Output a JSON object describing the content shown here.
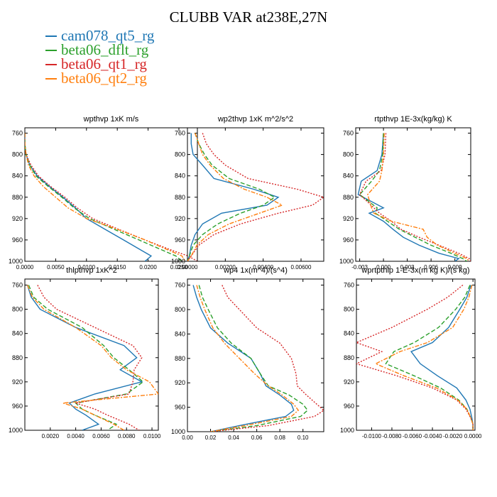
{
  "title": "CLUBB VAR at238E,27N",
  "legend": [
    {
      "label": "cam078_qt5_rg",
      "color": "#1f77b4"
    },
    {
      "label": "beta06_dflt_rg",
      "color": "#2ca02c"
    },
    {
      "label": "beta06_qt1_rg",
      "color": "#d62728"
    },
    {
      "label": "beta06_qt2_rg",
      "color": "#ff7f0e"
    }
  ],
  "chart_data": [
    {
      "type": "line",
      "title": "wpthvp  1xK m/s",
      "xlim": [
        0,
        0.028
      ],
      "ylim": [
        1000,
        750
      ],
      "xticks": [
        "0.0000",
        "0.0050",
        "0.0100",
        "0.0150",
        "0.0200",
        "0.0250"
      ],
      "xtick_values": [
        0,
        0.005,
        0.01,
        0.015,
        0.02,
        0.025
      ],
      "yticks": [
        "760",
        "800",
        "840",
        "880",
        "920",
        "960",
        "1000"
      ],
      "y": [
        760,
        780,
        800,
        820,
        840,
        860,
        880,
        900,
        920,
        940,
        960,
        980,
        990,
        1000
      ],
      "series": [
        {
          "values": [
            0.0,
            0.0,
            0.0002,
            0.0008,
            0.002,
            0.004,
            0.0062,
            0.0082,
            0.01,
            0.013,
            0.016,
            0.019,
            0.0205,
            0.0195
          ]
        },
        {
          "values": [
            0.0,
            0.0,
            0.0002,
            0.0008,
            0.0018,
            0.0038,
            0.006,
            0.008,
            0.0105,
            0.0145,
            0.0185,
            0.0225,
            0.0245,
            0.0255
          ]
        },
        {
          "values": [
            0.0,
            0.0,
            0.0002,
            0.001,
            0.0022,
            0.0042,
            0.0065,
            0.0085,
            0.011,
            0.0152,
            0.0195,
            0.024,
            0.0265,
            0.028
          ]
        },
        {
          "values": [
            0.0,
            0.0,
            0.0002,
            0.0006,
            0.0015,
            0.003,
            0.005,
            0.007,
            0.01,
            0.015,
            0.0195,
            0.0235,
            0.0255,
            0.026
          ]
        }
      ]
    },
    {
      "type": "line",
      "title": "wp2thvp  1xK m^2/s^2",
      "xlim": [
        0,
        0.0072
      ],
      "ylim": [
        1000,
        750
      ],
      "xticks": [
        "0.00000",
        "0.00200",
        "0.00400",
        "0.00600"
      ],
      "xtick_values": [
        0,
        0.002,
        0.004,
        0.006
      ],
      "yticks": [
        "760",
        "800",
        "840",
        "880",
        "920",
        "960",
        "1000"
      ],
      "y": [
        760,
        780,
        800,
        820,
        845,
        865,
        880,
        895,
        910,
        930,
        950,
        970,
        990,
        1000
      ],
      "series": [
        {
          "values": [
            0.0002,
            0.0002,
            0.0003,
            0.0008,
            0.0014,
            0.0035,
            0.0048,
            0.0042,
            0.0018,
            0.0008,
            0.0004,
            0.0002,
            0.0001,
            0.0
          ]
        },
        {
          "values": [
            0.0004,
            0.0006,
            0.0009,
            0.0013,
            0.0022,
            0.0038,
            0.0046,
            0.004,
            0.0028,
            0.0016,
            0.0008,
            0.0003,
            0.0001,
            0.0
          ]
        },
        {
          "values": [
            0.0008,
            0.001,
            0.0014,
            0.002,
            0.0032,
            0.0058,
            0.0072,
            0.0066,
            0.0048,
            0.0028,
            0.0014,
            0.0006,
            0.0002,
            0.0
          ]
        },
        {
          "values": [
            0.0004,
            0.0006,
            0.0008,
            0.0012,
            0.0019,
            0.003,
            0.0042,
            0.005,
            0.0038,
            0.0022,
            0.0011,
            0.0005,
            0.0002,
            0.0
          ]
        }
      ]
    },
    {
      "type": "line",
      "title": "rtpthvp  1E-3x(kg/kg) K",
      "xlim": [
        -0.0035,
        0.011
      ],
      "ylim": [
        1000,
        750
      ],
      "xticks": [
        "-0.003",
        "0.000",
        "0.003",
        "0.006",
        "0.009"
      ],
      "xtick_values": [
        -0.003,
        0,
        0.003,
        0.006,
        0.009
      ],
      "yticks": [
        "760",
        "800",
        "840",
        "880",
        "920",
        "960",
        "1000"
      ],
      "y": [
        760,
        800,
        830,
        850,
        875,
        900,
        910,
        925,
        940,
        955,
        970,
        985,
        995,
        1000
      ],
      "series": [
        {
          "values": [
            0.0,
            -0.0002,
            -0.0008,
            -0.0028,
            -0.0032,
            0.0,
            -0.0018,
            0.0,
            0.0012,
            0.0025,
            0.0045,
            0.007,
            0.0095,
            0.009
          ]
        },
        {
          "values": [
            0.0,
            -0.0001,
            -0.0005,
            -0.0015,
            -0.003,
            -0.0008,
            -0.001,
            0.0005,
            0.002,
            0.004,
            0.006,
            0.0085,
            0.01,
            0.0105
          ]
        },
        {
          "values": [
            0.0003,
            0.0002,
            -0.0003,
            -0.0022,
            -0.003,
            -0.0012,
            -0.0005,
            0.001,
            0.0022,
            0.0045,
            0.007,
            0.0095,
            0.0108,
            0.011
          ]
        },
        {
          "values": [
            0.0001,
            0.0,
            -0.0002,
            -0.0005,
            -0.002,
            -0.0015,
            -0.0012,
            0.001,
            0.005,
            0.0055,
            0.0068,
            0.009,
            0.0105,
            0.0108
          ]
        }
      ]
    },
    {
      "type": "line",
      "title": "thlpthvp  1xK^2",
      "xlim": [
        0,
        0.0105
      ],
      "ylim": [
        1000,
        750
      ],
      "xticks": [
        "0.0020",
        "0.0040",
        "0.0060",
        "0.0080",
        "0.0100"
      ],
      "xtick_values": [
        0.002,
        0.004,
        0.006,
        0.008,
        0.01
      ],
      "yticks": [
        "760",
        "800",
        "840",
        "880",
        "920",
        "960",
        "1000"
      ],
      "y": [
        760,
        780,
        800,
        830,
        860,
        880,
        900,
        920,
        940,
        955,
        965,
        975,
        990,
        1000
      ],
      "series": [
        {
          "values": [
            0.0002,
            0.0005,
            0.0012,
            0.004,
            0.0078,
            0.0088,
            0.0075,
            0.0092,
            0.0055,
            0.0035,
            0.004,
            0.0048,
            0.0058,
            0.0045
          ]
        },
        {
          "values": [
            0.0003,
            0.0007,
            0.0018,
            0.0045,
            0.0062,
            0.007,
            0.0082,
            0.0093,
            0.008,
            0.004,
            0.0045,
            0.0055,
            0.0072,
            0.0065
          ]
        },
        {
          "values": [
            0.001,
            0.0015,
            0.0025,
            0.0055,
            0.0085,
            0.0092,
            0.0086,
            0.0085,
            0.0082,
            0.004,
            0.0055,
            0.0065,
            0.0082,
            0.009
          ]
        },
        {
          "values": [
            0.0002,
            0.0006,
            0.0015,
            0.004,
            0.006,
            0.0068,
            0.008,
            0.0098,
            0.0105,
            0.003,
            0.0045,
            0.0055,
            0.007,
            0.0078
          ]
        }
      ]
    },
    {
      "type": "line",
      "title": "wp4  1x(m^4)/(s^4)",
      "xlim": [
        0,
        0.118
      ],
      "ylim": [
        1000,
        750
      ],
      "xticks": [
        "0.00",
        "0.02",
        "0.04",
        "0.06",
        "0.08",
        "0.10"
      ],
      "xtick_values": [
        0,
        0.02,
        0.04,
        0.06,
        0.08,
        0.1
      ],
      "yticks": [
        "760",
        "800",
        "840",
        "880",
        "920",
        "960",
        "1000"
      ],
      "y": [
        760,
        780,
        800,
        830,
        855,
        880,
        905,
        925,
        940,
        955,
        965,
        975,
        990,
        1000
      ],
      "series": [
        {
          "values": [
            0.005,
            0.008,
            0.012,
            0.02,
            0.035,
            0.055,
            0.063,
            0.068,
            0.08,
            0.09,
            0.092,
            0.085,
            0.045,
            0.02
          ]
        },
        {
          "values": [
            0.01,
            0.013,
            0.018,
            0.026,
            0.038,
            0.055,
            0.063,
            0.07,
            0.088,
            0.1,
            0.104,
            0.098,
            0.06,
            0.02
          ]
        },
        {
          "values": [
            0.03,
            0.035,
            0.045,
            0.06,
            0.08,
            0.09,
            0.094,
            0.095,
            0.103,
            0.112,
            0.118,
            0.11,
            0.07,
            0.02
          ]
        },
        {
          "values": [
            0.008,
            0.011,
            0.015,
            0.022,
            0.032,
            0.045,
            0.058,
            0.07,
            0.082,
            0.092,
            0.096,
            0.09,
            0.05,
            0.02
          ]
        }
      ]
    },
    {
      "type": "line",
      "title": "wprtpthlp  1-E-3x(m kg K)/(s kg)",
      "xlim": [
        -0.0115,
        0.0002
      ],
      "ylim": [
        1000,
        750
      ],
      "xticks": [
        "-0.0100",
        "-0.0080",
        "-0.0060",
        "-0.0040",
        "-0.0020",
        "0.0000"
      ],
      "xtick_values": [
        -0.01,
        -0.008,
        -0.006,
        -0.004,
        -0.002,
        0
      ],
      "yticks": [
        "760",
        "800",
        "840",
        "880",
        "920",
        "960",
        "1000"
      ],
      "y": [
        760,
        780,
        800,
        830,
        855,
        870,
        890,
        910,
        930,
        950,
        965,
        980,
        990,
        1000
      ],
      "series": [
        {
          "values": [
            -0.0002,
            -0.0006,
            -0.0013,
            -0.0024,
            -0.004,
            -0.0061,
            -0.0052,
            -0.0035,
            -0.0016,
            -0.0007,
            -0.0003,
            -0.0001,
            0.0,
            0.0
          ]
        },
        {
          "values": [
            -0.0003,
            -0.0008,
            -0.0017,
            -0.0034,
            -0.0058,
            -0.0078,
            -0.0086,
            -0.0058,
            -0.0032,
            -0.0014,
            -0.0006,
            -0.0002,
            0.0,
            0.0
          ]
        },
        {
          "values": [
            -0.001,
            -0.0025,
            -0.0045,
            -0.008,
            -0.0115,
            -0.009,
            -0.0115,
            -0.0075,
            -0.004,
            -0.0016,
            -0.0007,
            -0.0002,
            0.0,
            0.0
          ]
        },
        {
          "values": [
            -0.0001,
            -0.0004,
            -0.0009,
            -0.002,
            -0.0045,
            -0.0072,
            -0.0096,
            -0.0068,
            -0.0036,
            -0.0015,
            -0.0006,
            -0.0002,
            0.0,
            0.0
          ]
        }
      ]
    }
  ]
}
